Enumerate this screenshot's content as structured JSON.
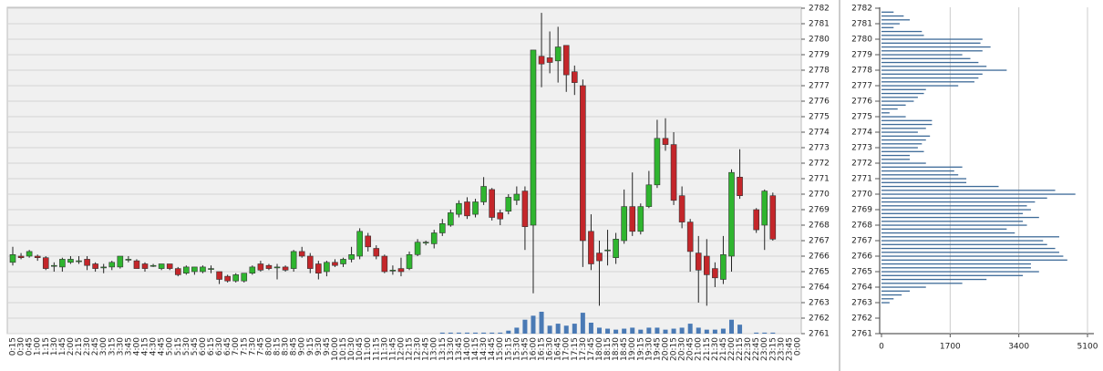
{
  "chart_data": [
    {
      "type": "candlestick",
      "categories": [
        "0:15",
        "0:30",
        "0:45",
        "1:00",
        "1:15",
        "1:30",
        "1:45",
        "2:00",
        "2:15",
        "2:30",
        "2:45",
        "3:00",
        "3:15",
        "3:30",
        "3:45",
        "4:00",
        "4:15",
        "4:30",
        "4:45",
        "5:00",
        "5:15",
        "5:30",
        "5:45",
        "6:00",
        "6:15",
        "6:30",
        "6:45",
        "7:00",
        "7:15",
        "7:30",
        "7:45",
        "8:00",
        "8:15",
        "8:30",
        "8:45",
        "9:00",
        "9:15",
        "9:30",
        "9:45",
        "10:00",
        "10:15",
        "10:30",
        "10:45",
        "11:00",
        "11:15",
        "11:30",
        "11:45",
        "12:00",
        "12:15",
        "12:30",
        "12:45",
        "13:00",
        "13:15",
        "13:30",
        "13:45",
        "14:00",
        "14:15",
        "14:30",
        "14:45",
        "15:00",
        "15:15",
        "15:30",
        "15:45",
        "16:00",
        "16:15",
        "16:30",
        "16:45",
        "17:00",
        "17:15",
        "17:30",
        "17:45",
        "18:00",
        "18:15",
        "18:30",
        "18:45",
        "19:00",
        "19:15",
        "19:30",
        "19:45",
        "20:00",
        "20:15",
        "20:30",
        "20:45",
        "21:00",
        "21:15",
        "21:30",
        "21:45",
        "22:00",
        "22:15",
        "22:30",
        "22:45",
        "23:00",
        "23:15",
        "23:30",
        "23:45",
        "0:00"
      ],
      "open": [
        2765.6,
        2766.0,
        2766.0,
        2766.0,
        2765.9,
        2765.4,
        2765.3,
        2765.6,
        2765.7,
        2765.8,
        2765.5,
        2765.3,
        2765.3,
        2765.3,
        2765.8,
        2765.7,
        2765.5,
        2765.4,
        2765.2,
        2765.5,
        2765.2,
        2764.9,
        2765.0,
        2765.0,
        2765.2,
        2765.0,
        2764.7,
        2764.4,
        2764.4,
        2764.9,
        2765.5,
        2765.4,
        2765.3,
        2765.3,
        2765.2,
        2766.3,
        2766.0,
        2765.5,
        2765.0,
        2765.6,
        2765.5,
        2765.8,
        2766.0,
        2767.3,
        2766.5,
        2766.0,
        2765.1,
        2765.2,
        2765.2,
        2766.1,
        2766.9,
        2766.8,
        2767.5,
        2768.0,
        2768.7,
        2769.5,
        2768.7,
        2769.5,
        2770.3,
        2768.8,
        2768.9,
        2769.6,
        2770.2,
        2768.0,
        2778.9,
        2778.8,
        2778.6,
        2779.6,
        2777.9,
        2777.0,
        2767.6,
        2766.2,
        2766.4,
        2765.9,
        2767.0,
        2769.2,
        2767.6,
        2769.2,
        2770.6,
        2773.6,
        2773.2,
        2769.9,
        2768.2,
        2766.2,
        2766.0,
        2765.2,
        2764.5,
        2766.0,
        2771.1,
        null,
        2769.0,
        2768.0,
        2769.9,
        null,
        null,
        null
      ],
      "high": [
        2766.6,
        2766.2,
        2766.4,
        2766.1,
        2766.0,
        2765.6,
        2765.9,
        2766.0,
        2766.0,
        2766.0,
        2765.6,
        2765.5,
        2765.7,
        2766.0,
        2766.0,
        2765.8,
        2765.6,
        2765.5,
        2765.5,
        2765.5,
        2765.3,
        2765.4,
        2765.3,
        2765.4,
        2765.4,
        2765.0,
        2764.8,
        2764.9,
        2764.9,
        2765.4,
        2765.7,
        2765.5,
        2765.5,
        2765.4,
        2766.4,
        2766.6,
        2766.2,
        2765.7,
        2765.7,
        2765.8,
        2765.9,
        2766.6,
        2767.8,
        2767.5,
        2766.7,
        2766.1,
        2765.4,
        2765.9,
        2766.3,
        2767.1,
        2767.0,
        2767.7,
        2768.4,
        2769.0,
        2769.6,
        2769.8,
        2769.7,
        2771.1,
        2770.4,
        2769.0,
        2770.0,
        2770.5,
        2770.5,
        2779.3,
        2781.7,
        2780.5,
        2780.8,
        2779.6,
        2778.3,
        2777.4,
        2768.7,
        2767.0,
        2767.7,
        2767.5,
        2770.3,
        2771.4,
        2769.4,
        2771.5,
        2774.8,
        2774.9,
        2774.0,
        2770.5,
        2768.4,
        2767.3,
        2767.1,
        2765.6,
        2767.3,
        2771.6,
        2772.9,
        null,
        2769.1,
        2770.3,
        2770.1,
        null,
        null,
        null
      ],
      "low": [
        2765.4,
        2765.8,
        2765.9,
        2765.7,
        2765.1,
        2765.0,
        2765.0,
        2765.5,
        2765.5,
        2765.1,
        2765.0,
        2764.9,
        2765.1,
        2765.2,
        2765.6,
        2765.2,
        2765.0,
        2765.3,
        2765.1,
        2765.1,
        2764.7,
        2764.8,
        2764.8,
        2764.9,
        2764.9,
        2764.2,
        2764.3,
        2764.3,
        2764.3,
        2764.8,
        2765.0,
        2765.1,
        2764.5,
        2765.0,
        2765.0,
        2765.9,
        2764.9,
        2764.5,
        2764.7,
        2765.3,
        2765.3,
        2765.6,
        2765.8,
        2766.3,
        2765.8,
        2764.9,
        2764.8,
        2764.7,
        2765.1,
        2766.0,
        2766.7,
        2766.5,
        2767.3,
        2767.9,
        2768.5,
        2768.4,
        2768.5,
        2769.3,
        2768.3,
        2768.0,
        2768.7,
        2769.3,
        2766.4,
        2763.6,
        2776.9,
        2777.8,
        2777.2,
        2776.6,
        2776.4,
        2765.3,
        2765.1,
        2762.8,
        2765.4,
        2765.5,
        2766.8,
        2767.3,
        2767.4,
        2769.1,
        2770.4,
        2772.8,
        2769.3,
        2767.8,
        2765.0,
        2763.0,
        2762.8,
        2764.0,
        2764.2,
        2765.0,
        2769.7,
        null,
        2767.5,
        2766.4,
        2767.0,
        null,
        null,
        null
      ],
      "close": [
        2766.1,
        2765.9,
        2766.3,
        2765.9,
        2765.2,
        2765.4,
        2765.8,
        2765.8,
        2765.7,
        2765.4,
        2765.2,
        2765.3,
        2765.6,
        2766.0,
        2765.8,
        2765.2,
        2765.2,
        2765.4,
        2765.5,
        2765.2,
        2764.8,
        2765.3,
        2765.3,
        2765.3,
        2765.2,
        2764.5,
        2764.4,
        2764.8,
        2764.9,
        2765.3,
        2765.1,
        2765.2,
        2765.3,
        2765.1,
        2766.3,
        2766.0,
        2765.2,
        2764.9,
        2765.6,
        2765.4,
        2765.8,
        2766.1,
        2767.6,
        2766.6,
        2766.0,
        2765.0,
        2765.1,
        2765.0,
        2766.1,
        2766.9,
        2766.9,
        2767.5,
        2768.1,
        2768.8,
        2769.4,
        2768.6,
        2769.5,
        2770.5,
        2768.5,
        2768.4,
        2769.8,
        2770.0,
        2767.9,
        2779.3,
        2778.4,
        2778.5,
        2779.5,
        2777.7,
        2777.2,
        2767.0,
        2765.5,
        2765.7,
        2766.4,
        2767.1,
        2769.2,
        2767.6,
        2769.2,
        2770.6,
        2773.6,
        2773.2,
        2769.6,
        2768.2,
        2766.3,
        2765.1,
        2764.8,
        2764.6,
        2766.1,
        2771.4,
        2769.9,
        null,
        2767.7,
        2770.2,
        2767.1,
        null,
        null,
        null
      ],
      "volume": [
        0,
        0,
        0,
        0,
        0,
        0,
        0,
        0,
        0,
        0,
        0,
        0,
        0,
        0,
        0,
        0,
        0,
        0,
        0,
        0,
        0,
        0,
        0,
        0,
        0,
        0,
        0,
        0,
        0,
        0,
        0,
        0,
        0,
        0,
        0,
        0,
        0,
        0,
        0,
        0,
        0,
        0,
        0,
        0,
        0,
        0,
        0,
        0,
        0,
        0,
        0,
        0,
        1,
        1,
        1,
        1,
        1,
        1,
        1,
        1,
        3,
        6,
        14,
        18,
        22,
        8,
        10,
        8,
        10,
        21,
        11,
        6,
        5,
        4,
        5,
        6,
        4,
        6,
        6,
        4,
        5,
        6,
        10,
        6,
        4,
        4,
        5,
        14,
        9,
        null,
        1,
        1,
        1,
        null,
        null,
        null
      ],
      "up_color": "#2fb52f",
      "down_color": "#c4262a",
      "volume_color": "#4a7ab5",
      "ylim": [
        2761,
        2782
      ],
      "yticks": [
        2761,
        2762,
        2763,
        2764,
        2765,
        2766,
        2767,
        2768,
        2769,
        2770,
        2771,
        2772,
        2773,
        2774,
        2775,
        2776,
        2777,
        2778,
        2779,
        2780,
        2781,
        2782
      ],
      "grid": true
    },
    {
      "type": "bar",
      "orientation": "horizontal",
      "y": [
        2781.75,
        2781.5,
        2781.25,
        2781,
        2780.75,
        2780.5,
        2780.25,
        2780,
        2779.75,
        2779.5,
        2779.25,
        2779,
        2778.75,
        2778.5,
        2778.25,
        2778,
        2777.75,
        2777.5,
        2777.25,
        2777,
        2776.75,
        2776.5,
        2776.25,
        2776,
        2775.75,
        2775.5,
        2775.25,
        2775,
        2774.75,
        2774.5,
        2774.25,
        2774,
        2773.75,
        2773.5,
        2773.25,
        2773,
        2772.75,
        2772.5,
        2772.25,
        2772,
        2771.75,
        2771.5,
        2771.25,
        2771,
        2770.75,
        2770.5,
        2770.25,
        2770,
        2769.75,
        2769.5,
        2769.25,
        2769,
        2768.75,
        2768.5,
        2768.25,
        2768,
        2767.75,
        2767.5,
        2767.25,
        2767,
        2766.75,
        2766.5,
        2766.25,
        2766,
        2765.75,
        2765.5,
        2765.25,
        2765,
        2764.75,
        2764.5,
        2764.25,
        2764,
        2763.75,
        2763.5,
        2763.25,
        2763
      ],
      "values": [
        300,
        550,
        700,
        450,
        300,
        1000,
        1050,
        2500,
        2450,
        2700,
        2500,
        2000,
        2200,
        2400,
        2600,
        3100,
        2500,
        2400,
        2300,
        1900,
        1100,
        1050,
        900,
        800,
        600,
        400,
        200,
        600,
        1250,
        1250,
        1100,
        900,
        1200,
        1100,
        1000,
        900,
        1050,
        700,
        700,
        1100,
        2000,
        1800,
        1900,
        2100,
        2100,
        2900,
        4300,
        4800,
        4100,
        3800,
        3600,
        3700,
        3500,
        3900,
        3500,
        3600,
        3100,
        3300,
        4400,
        4000,
        4100,
        4300,
        4400,
        4500,
        4600,
        3700,
        3700,
        3900,
        3500,
        2600,
        2000,
        1100,
        700,
        500,
        300,
        200
      ],
      "color": "#3d6a98",
      "ylim": [
        2761,
        2782
      ],
      "yticks": [
        2761,
        2762,
        2763,
        2764,
        2765,
        2766,
        2767,
        2768,
        2769,
        2770,
        2771,
        2772,
        2773,
        2774,
        2775,
        2776,
        2777,
        2778,
        2779,
        2780,
        2781,
        2782
      ],
      "xlim": [
        0,
        5100
      ],
      "xticks": [
        0,
        1700,
        3400,
        5100
      ],
      "grid": true
    }
  ]
}
